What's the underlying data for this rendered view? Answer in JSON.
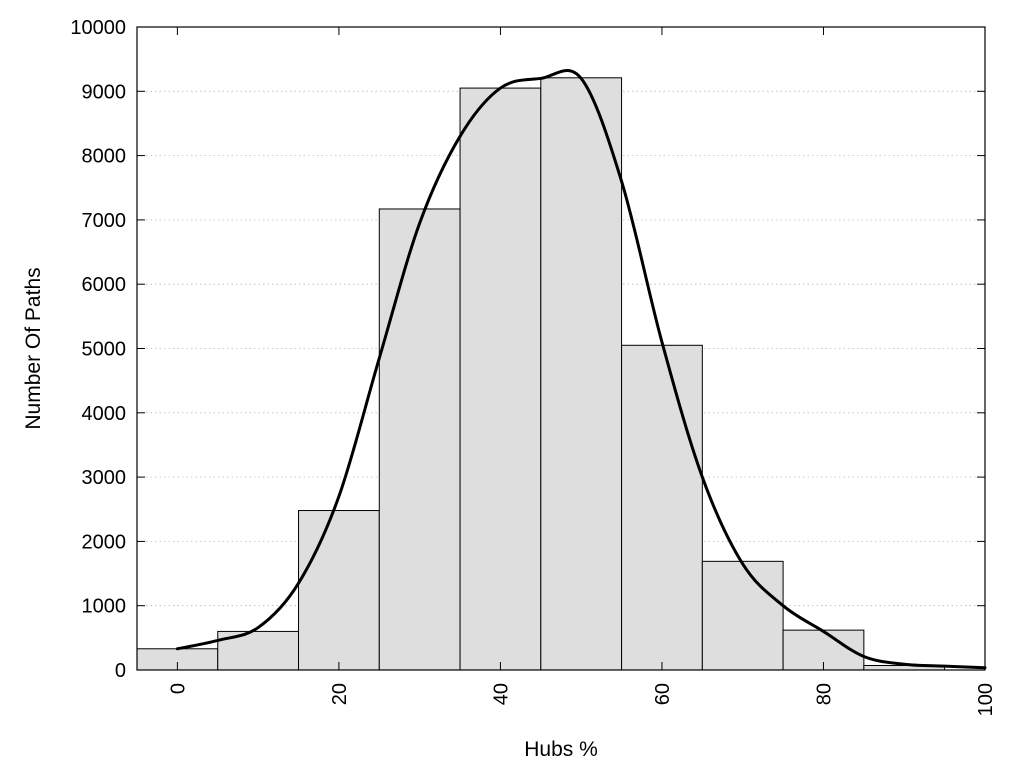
{
  "chart_data": {
    "type": "bar",
    "title": "",
    "xlabel": "Hubs %",
    "ylabel": "Number Of Paths",
    "xlim": [
      -5,
      100
    ],
    "ylim": [
      0,
      10000
    ],
    "xticks": [
      0,
      20,
      40,
      60,
      80,
      100
    ],
    "yticks": [
      0,
      1000,
      2000,
      3000,
      4000,
      5000,
      6000,
      7000,
      8000,
      9000,
      10000
    ],
    "bin_width": 10,
    "grid": {
      "y": true,
      "x": false,
      "style": "dotted"
    },
    "bar_fill": "#dedede",
    "bar_stroke": "#000000",
    "bars": [
      {
        "x": 0,
        "value": 330
      },
      {
        "x": 10,
        "value": 600
      },
      {
        "x": 20,
        "value": 2480
      },
      {
        "x": 30,
        "value": 7170
      },
      {
        "x": 40,
        "value": 9050
      },
      {
        "x": 50,
        "value": 9210
      },
      {
        "x": 60,
        "value": 5050
      },
      {
        "x": 70,
        "value": 1690
      },
      {
        "x": 80,
        "value": 620
      },
      {
        "x": 90,
        "value": 70
      }
    ],
    "curve": {
      "type": "line",
      "color": "#000000",
      "points": [
        [
          0,
          330
        ],
        [
          5,
          460
        ],
        [
          10,
          660
        ],
        [
          15,
          1350
        ],
        [
          20,
          2700
        ],
        [
          25,
          4850
        ],
        [
          30,
          6950
        ],
        [
          35,
          8300
        ],
        [
          40,
          9050
        ],
        [
          45,
          9200
        ],
        [
          50,
          9200
        ],
        [
          55,
          7600
        ],
        [
          60,
          5100
        ],
        [
          65,
          3000
        ],
        [
          70,
          1650
        ],
        [
          75,
          1000
        ],
        [
          80,
          600
        ],
        [
          85,
          210
        ],
        [
          90,
          90
        ],
        [
          95,
          60
        ],
        [
          100,
          35
        ]
      ]
    }
  }
}
